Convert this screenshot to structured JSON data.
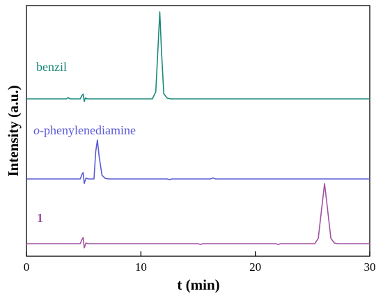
{
  "chart_data": {
    "type": "line",
    "xlabel": "t (min)",
    "ylabel": "Intensity (a.u.)",
    "xlim": [
      0,
      30
    ],
    "x_ticks": [
      0,
      10,
      20,
      30
    ],
    "y_ticks_labeled": false,
    "grid": false,
    "series": [
      {
        "name": "benzil",
        "label_style": "plain",
        "color": "#1a8a7a",
        "points": [
          [
            0.0,
            0.0
          ],
          [
            3.5,
            0.0
          ],
          [
            3.65,
            0.015
          ],
          [
            3.8,
            0.0
          ],
          [
            4.7,
            0.0
          ],
          [
            4.85,
            0.04
          ],
          [
            4.95,
            0.055
          ],
          [
            5.05,
            -0.03
          ],
          [
            5.15,
            0.01
          ],
          [
            5.3,
            0.0
          ],
          [
            11.0,
            0.0
          ],
          [
            11.3,
            0.08
          ],
          [
            11.5,
            0.6
          ],
          [
            11.65,
            1.0
          ],
          [
            11.8,
            0.55
          ],
          [
            12.0,
            0.06
          ],
          [
            12.3,
            0.008
          ],
          [
            12.6,
            0.0
          ],
          [
            30.0,
            0.0
          ]
        ]
      },
      {
        "name": "o-phenylenediamine",
        "label_style": "italic-prefix",
        "color": "#5b5bd6",
        "points": [
          [
            0.0,
            0.0
          ],
          [
            4.7,
            0.0
          ],
          [
            4.85,
            0.05
          ],
          [
            4.95,
            0.07
          ],
          [
            5.05,
            -0.05
          ],
          [
            5.2,
            0.01
          ],
          [
            5.4,
            0.0
          ],
          [
            5.9,
            0.0
          ],
          [
            6.05,
            0.3
          ],
          [
            6.2,
            0.43
          ],
          [
            6.35,
            0.25
          ],
          [
            6.6,
            0.04
          ],
          [
            6.9,
            0.005
          ],
          [
            7.2,
            0.0
          ],
          [
            12.3,
            0.0
          ],
          [
            12.5,
            -0.008
          ],
          [
            12.7,
            0.0
          ],
          [
            16.1,
            0.0
          ],
          [
            16.3,
            0.012
          ],
          [
            16.5,
            0.0
          ],
          [
            30.0,
            0.0
          ]
        ]
      },
      {
        "name": "1",
        "label_style": "bold",
        "color": "#a052a0",
        "points": [
          [
            0.0,
            0.0
          ],
          [
            4.7,
            0.0
          ],
          [
            4.85,
            0.06
          ],
          [
            4.95,
            0.09
          ],
          [
            5.05,
            -0.06
          ],
          [
            5.2,
            0.01
          ],
          [
            5.4,
            0.0
          ],
          [
            15.0,
            0.0
          ],
          [
            15.2,
            -0.012
          ],
          [
            15.4,
            0.0
          ],
          [
            21.8,
            0.0
          ],
          [
            22.0,
            -0.012
          ],
          [
            22.2,
            0.0
          ],
          [
            25.2,
            0.0
          ],
          [
            25.5,
            0.08
          ],
          [
            25.8,
            0.52
          ],
          [
            26.05,
            0.88
          ],
          [
            26.3,
            0.52
          ],
          [
            26.6,
            0.08
          ],
          [
            26.9,
            0.01
          ],
          [
            27.2,
            0.0
          ],
          [
            30.0,
            0.0
          ]
        ]
      }
    ]
  }
}
